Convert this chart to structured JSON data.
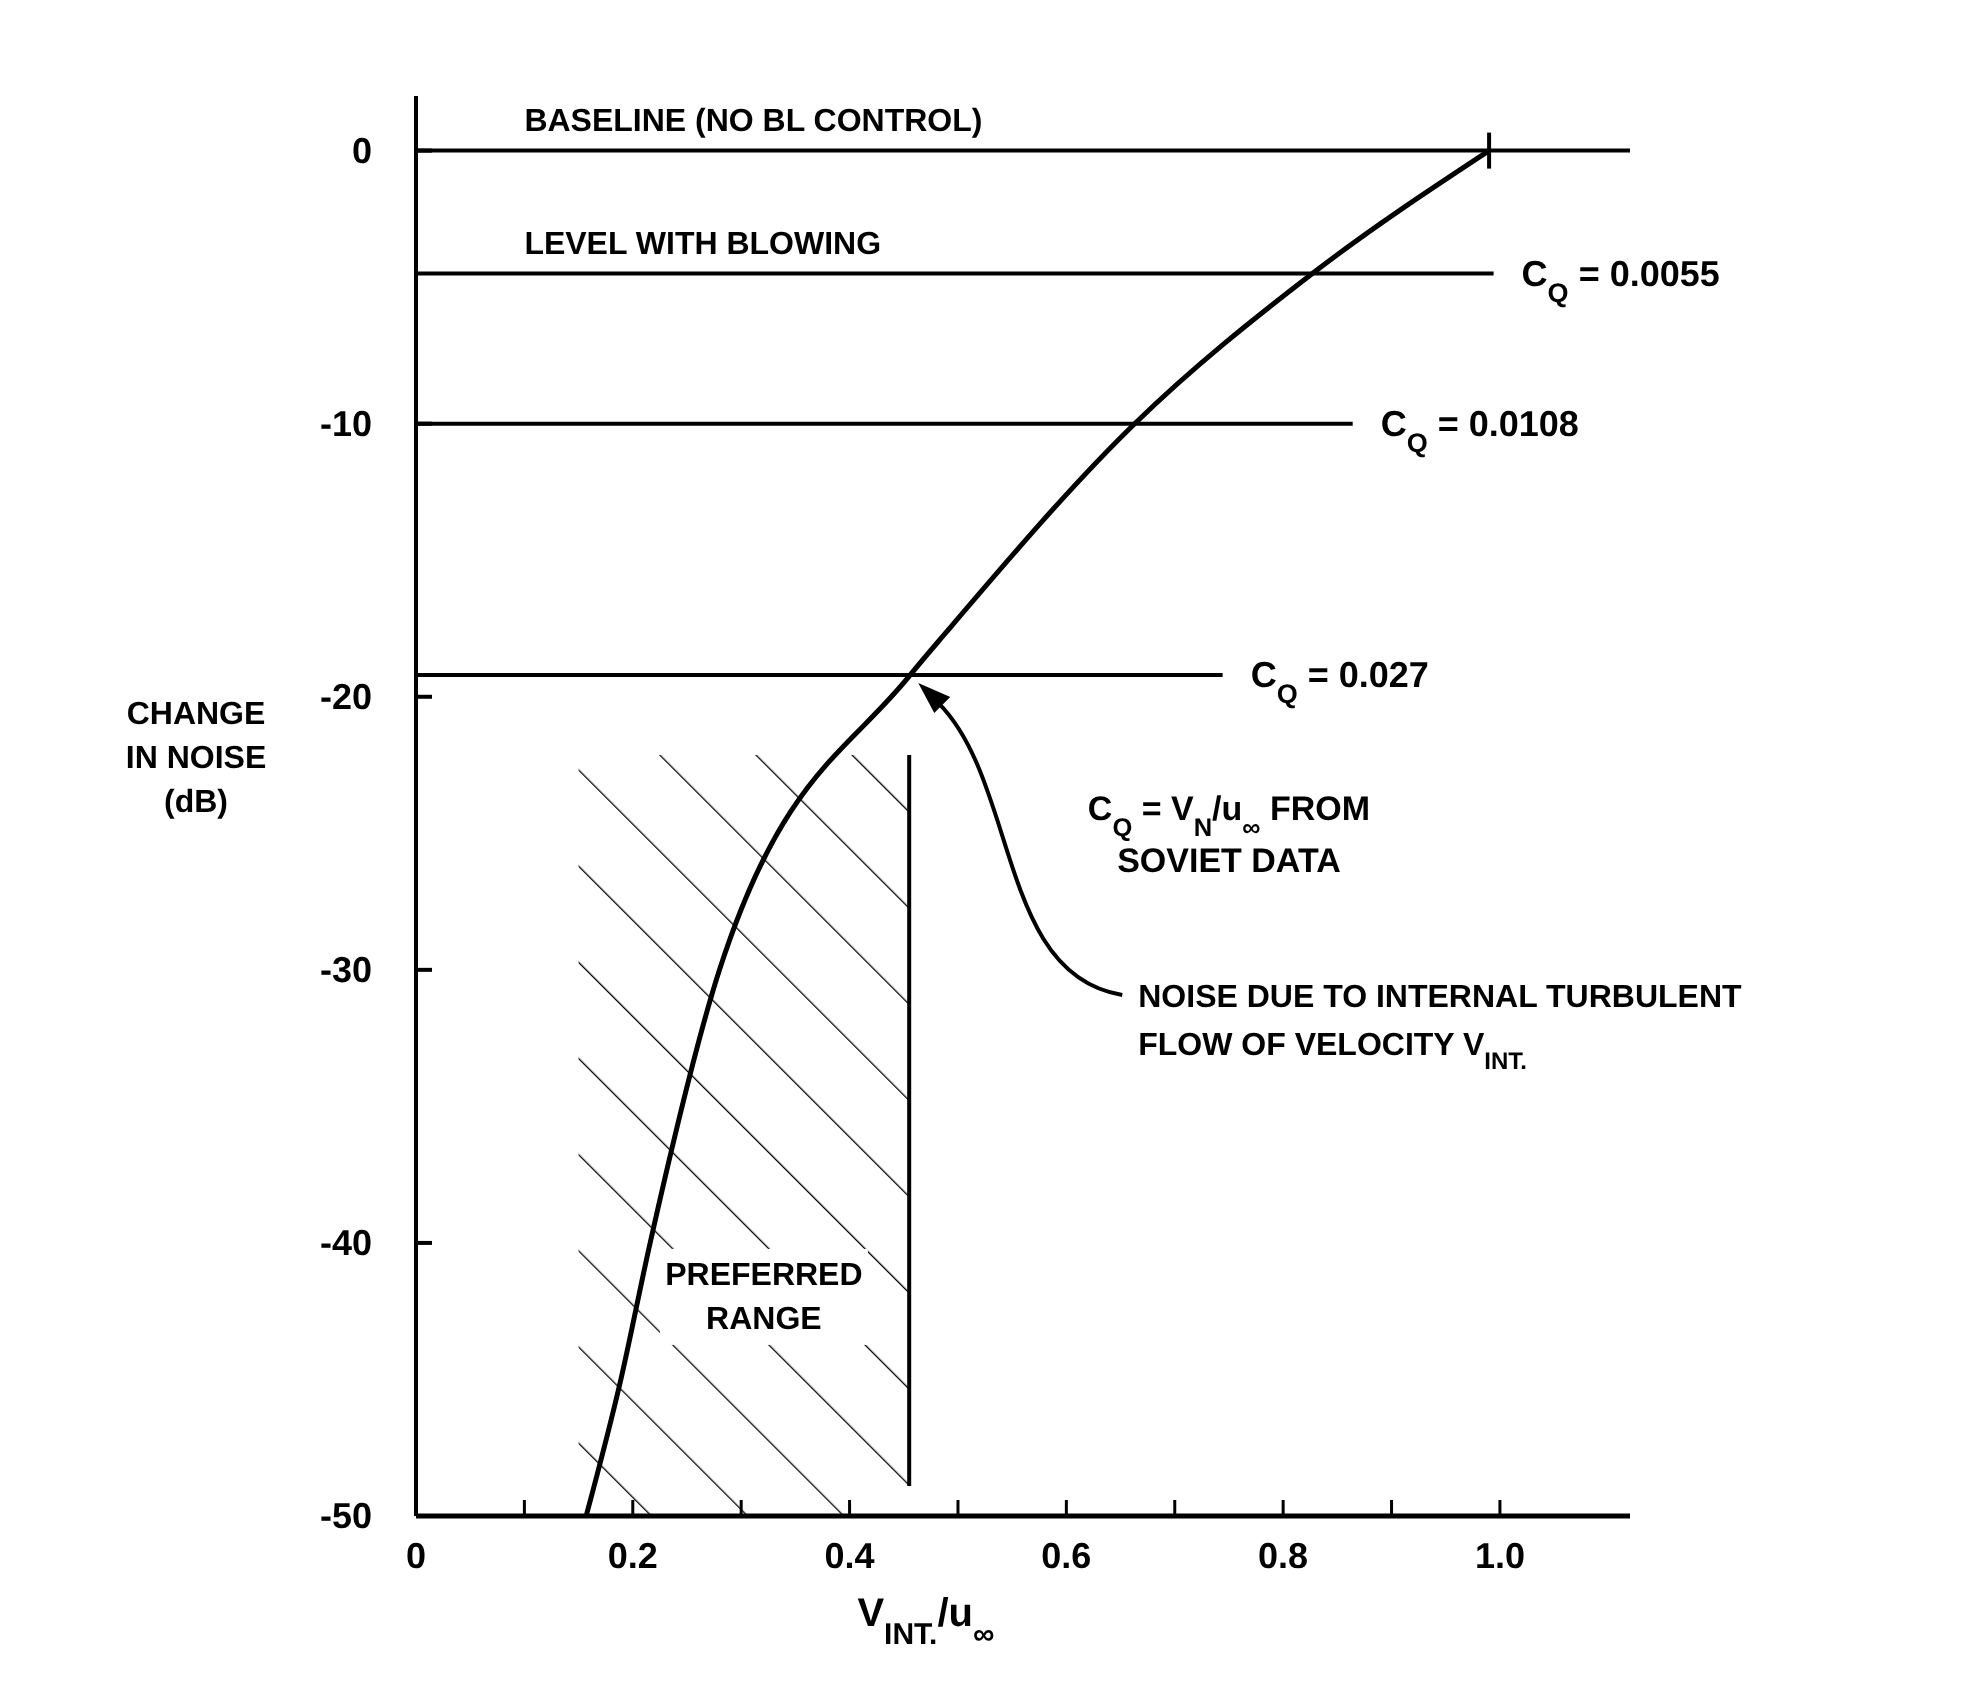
{
  "chart_data": {
    "type": "line",
    "xlabel": "V$_{INT.}$/u$_{∞}$",
    "ylabel": "CHANGE\nIN NOISE\n(dB)",
    "x": [
      0.157,
      0.189,
      0.216,
      0.28,
      0.456,
      0.49,
      0.663,
      0.827,
      0.99
    ],
    "series": [
      {
        "color": "#000000",
        "values": [
          -50,
          -45,
          -40,
          -30,
          -19.2,
          -17.6,
          -10,
          -4.5,
          0
        ]
      }
    ],
    "xlim": [
      0,
      1.12
    ],
    "ylim": [
      -50,
      2
    ],
    "xticks": [
      0,
      {
        "value": 0.1,
        "label": null
      },
      0.2,
      {
        "value": 0.3,
        "label": null
      },
      0.4,
      {
        "value": 0.5,
        "label": null
      },
      0.6,
      {
        "value": 0.7,
        "label": null
      },
      0.8,
      {
        "value": 0.9,
        "label": null
      },
      {
        "value": 1,
        "label": "1.0"
      }
    ],
    "yticks": [
      0,
      -10,
      -20,
      -30,
      -40,
      -50
    ],
    "ref_lines": [
      {
        "axis": "y",
        "value": 0
      },
      {
        "axis": "y",
        "value": -4.5
      },
      {
        "axis": "y",
        "value": -10
      },
      {
        "axis": "y",
        "value": -19.2
      },
      {
        "axis": "x",
        "value": 0.455
      }
    ],
    "bands": [
      {
        "axis": "x",
        "from": 0.15,
        "to": 0.455,
        "label": "PREFERRED\nRANGE"
      }
    ],
    "annotations": [
      {
        "text": "BASELINE (NO BL CONTROL)",
        "x": 0.1,
        "y": 0
      },
      {
        "text": "LEVEL WITH BLOWING",
        "x": 0.1,
        "y": -4.5
      },
      "C$_{Q}$ = 0.0055",
      "C$_{Q}$ = 0.0108",
      "C$_{Q}$ = 0.027",
      "NOISE DUE TO INTERNAL TURBULENT\nFLOW OF VELOCITY V$_{INT.}$",
      "C$_{Q}$ = V$_{N}$/u$_{∞}$ FROM\nSOVIET DATA"
    ],
    "grid": false,
    "marker": "none",
    "line_style": "solid"
  }
}
